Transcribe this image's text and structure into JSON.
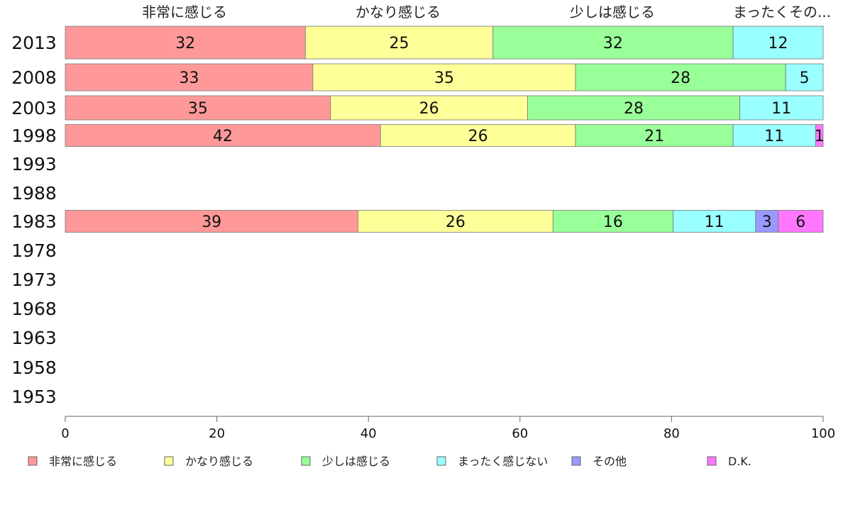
{
  "chart_data": {
    "type": "bar",
    "orientation": "horizontal",
    "stacked": true,
    "title": "",
    "xlabel": "",
    "ylabel": "",
    "xlim": [
      0,
      100
    ],
    "x_ticks": [
      "0",
      "20",
      "40",
      "60",
      "80",
      "100"
    ],
    "categories": [
      "2013",
      "2008",
      "2003",
      "1998",
      "1993",
      "1988",
      "1983",
      "1978",
      "1973",
      "1968",
      "1963",
      "1958",
      "1953"
    ],
    "top_labels": [
      "非常に感じる",
      "かなり感じる",
      "少しは感じる",
      "まったくその..."
    ],
    "legend_position": "bottom",
    "series": [
      {
        "name": "非常に感じる",
        "color": "#ff9999",
        "values": [
          32,
          33,
          35,
          42,
          null,
          null,
          39,
          null,
          null,
          null,
          null,
          null,
          null
        ],
        "labels": [
          "32",
          "33",
          "35",
          "42",
          "",
          "",
          "39",
          "",
          "",
          "",
          "",
          "",
          ""
        ]
      },
      {
        "name": "かなり感じる",
        "color": "#ffff99",
        "values": [
          25,
          35,
          26,
          26,
          null,
          null,
          26,
          null,
          null,
          null,
          null,
          null,
          null
        ],
        "labels": [
          "25",
          "35",
          "26",
          "26",
          "",
          "",
          "26",
          "",
          "",
          "",
          "",
          "",
          ""
        ]
      },
      {
        "name": "少しは感じる",
        "color": "#99ff99",
        "values": [
          32,
          28,
          28,
          21,
          null,
          null,
          16,
          null,
          null,
          null,
          null,
          null,
          null
        ],
        "labels": [
          "32",
          "28",
          "28",
          "21",
          "",
          "",
          "16",
          "",
          "",
          "",
          "",
          "",
          ""
        ]
      },
      {
        "name": "まったく感じない",
        "color": "#99ffff",
        "values": [
          12,
          5,
          11,
          11,
          null,
          null,
          11,
          null,
          null,
          null,
          null,
          null,
          null
        ],
        "labels": [
          "12",
          "5",
          "11",
          "11",
          "",
          "",
          "11",
          "",
          "",
          "",
          "",
          "",
          ""
        ]
      },
      {
        "name": "その他",
        "color": "#9999ff",
        "values": [
          null,
          null,
          null,
          null,
          null,
          null,
          3,
          null,
          null,
          null,
          null,
          null,
          null
        ],
        "labels": [
          "",
          "",
          "",
          "",
          "",
          "",
          "3",
          "",
          "",
          "",
          "",
          "",
          ""
        ]
      },
      {
        "name": "D.K.",
        "color": "#ff77ff",
        "values": [
          null,
          null,
          null,
          1,
          null,
          null,
          6,
          null,
          null,
          null,
          null,
          null,
          null
        ],
        "labels": [
          "",
          "",
          "",
          "1",
          "",
          "",
          "6",
          "",
          "",
          "",
          "",
          "",
          ""
        ]
      }
    ]
  }
}
